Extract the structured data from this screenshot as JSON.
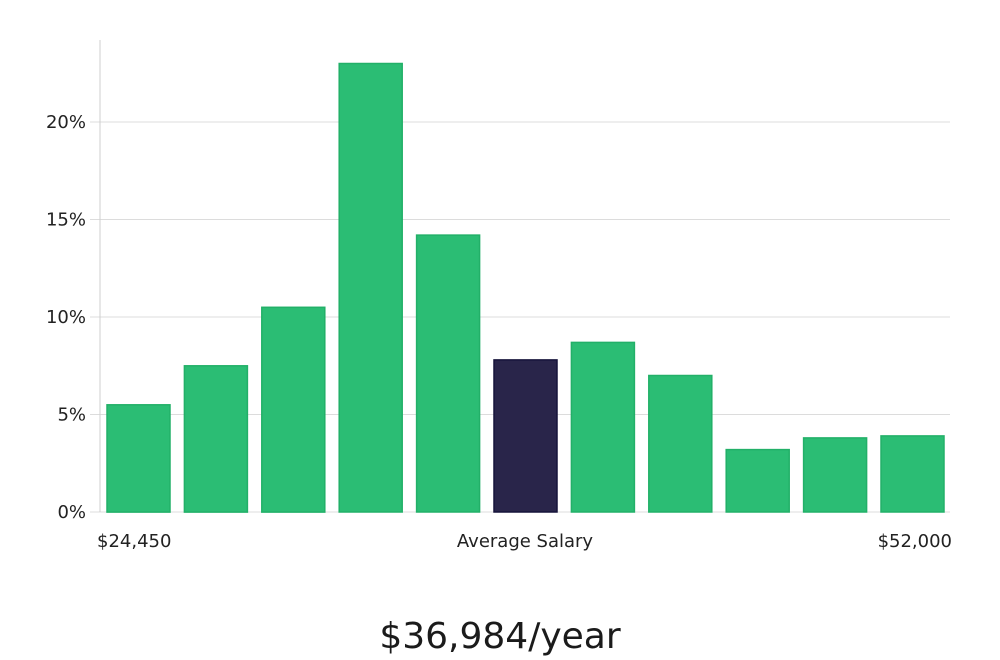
{
  "chart_data": {
    "type": "bar",
    "values": [
      5.5,
      7.5,
      10.5,
      23.0,
      14.2,
      7.8,
      8.7,
      7.0,
      3.2,
      3.8,
      3.9
    ],
    "highlight_index": 5,
    "ylim": [
      0,
      24
    ],
    "yticks": [
      0,
      5,
      10,
      15,
      20
    ],
    "ytick_labels": [
      "0%",
      "5%",
      "10%",
      "15%",
      "20%"
    ],
    "grid": true,
    "x_labels": {
      "left": "$24,450",
      "center": "Average Salary",
      "right": "$52,000"
    },
    "summary": "$36,984/year",
    "colors": {
      "bar": "#2bbd74",
      "bar_edge": "#22b068",
      "highlight": "#29254a",
      "highlight_edge": "#16133a",
      "grid": "#dcdcdc",
      "axis": "#cfcfcf"
    }
  }
}
